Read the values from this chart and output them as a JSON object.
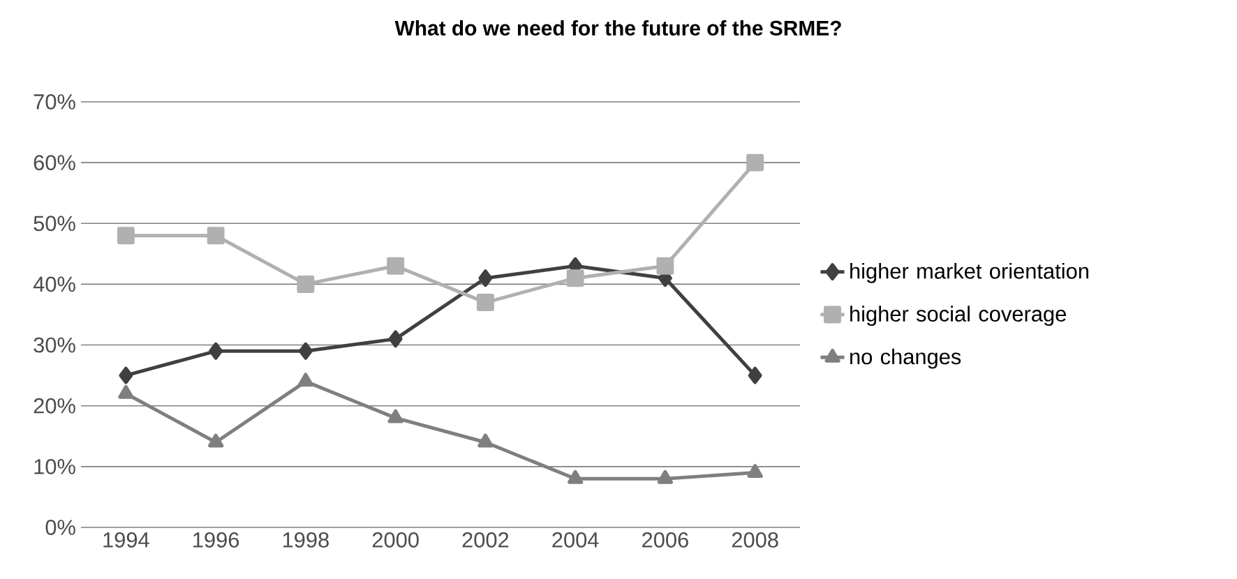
{
  "chart_data": {
    "type": "line",
    "title": "What do we need for the future of the SRME?",
    "categories": [
      "1994",
      "1996",
      "1998",
      "2000",
      "2002",
      "2004",
      "2006",
      "2008"
    ],
    "series": [
      {
        "name": "higher market orientation",
        "color": "#404040",
        "marker": "diamond",
        "values": [
          25,
          29,
          29,
          31,
          41,
          43,
          41,
          25
        ]
      },
      {
        "name": "higher social coverage",
        "color": "#b0b0b0",
        "marker": "square",
        "values": [
          48,
          48,
          40,
          43,
          37,
          41,
          43,
          60
        ]
      },
      {
        "name": "no changes",
        "color": "#7f7f7f",
        "marker": "triangle",
        "values": [
          22,
          14,
          24,
          18,
          14,
          8,
          8,
          9
        ]
      }
    ],
    "ylim": [
      0,
      70
    ],
    "yticks": [
      {
        "value": 0,
        "label": "0%"
      },
      {
        "value": 10,
        "label": "10%"
      },
      {
        "value": 20,
        "label": "20%"
      },
      {
        "value": 30,
        "label": "30%"
      },
      {
        "value": 40,
        "label": "40%"
      },
      {
        "value": 50,
        "label": "50%"
      },
      {
        "value": 60,
        "label": "60%"
      },
      {
        "value": 70,
        "label": "70%"
      }
    ],
    "grid": "y",
    "legend": "right",
    "line_style": "solid"
  }
}
